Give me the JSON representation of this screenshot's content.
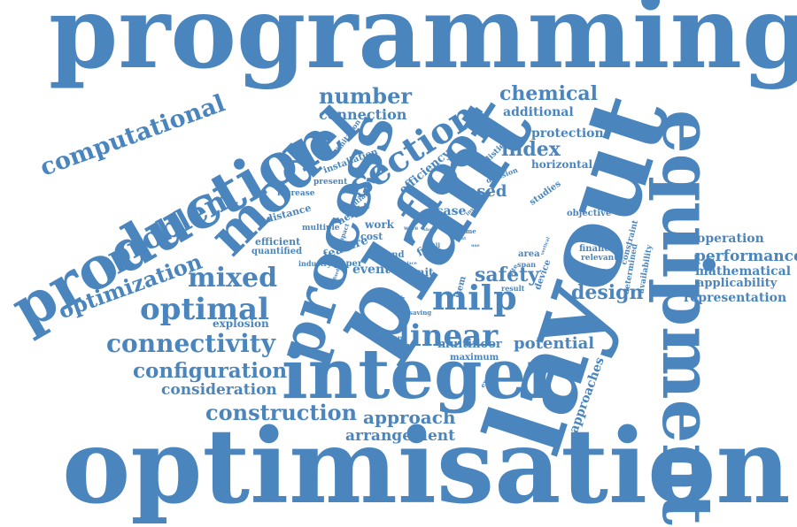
{
  "word_cloud": {
    "color": "#4a85bd",
    "words": [
      "programming",
      "optimisation",
      "layout",
      "plant",
      "equipment",
      "integer",
      "production",
      "model",
      "process",
      "floor",
      "computational",
      "problem",
      "optimization",
      "mixed",
      "optimal",
      "connectivity",
      "configuration",
      "consideration",
      "construction",
      "approach",
      "arrangement",
      "linear",
      "milp",
      "section",
      "number",
      "connection",
      "chemical",
      "additional",
      "protection",
      "index",
      "safety",
      "design",
      "potential",
      "multifloor",
      "maximum",
      "operation",
      "performance",
      "mathematical",
      "applicability",
      "representation",
      "based",
      "case",
      "efficiency",
      "horizontal",
      "studies",
      "objective",
      "financial",
      "relevant",
      "cost",
      "constraint",
      "availability",
      "determined",
      "approaches",
      "explosion",
      "efficient",
      "quantified",
      "feature",
      "industry",
      "paper",
      "event",
      "unit",
      "land",
      "area",
      "span",
      "result",
      "device",
      "item",
      "fire",
      "tall",
      "multiple",
      "distance",
      "increase",
      "height",
      "work",
      "present",
      "installation",
      "limitation",
      "spatial",
      "impact",
      "realistic",
      "decision",
      "saving",
      "factor",
      "amount",
      "example",
      "involve",
      "wave",
      "place",
      "short",
      "time",
      "fixed",
      "vertical",
      "site",
      "last",
      "use"
    ]
  }
}
